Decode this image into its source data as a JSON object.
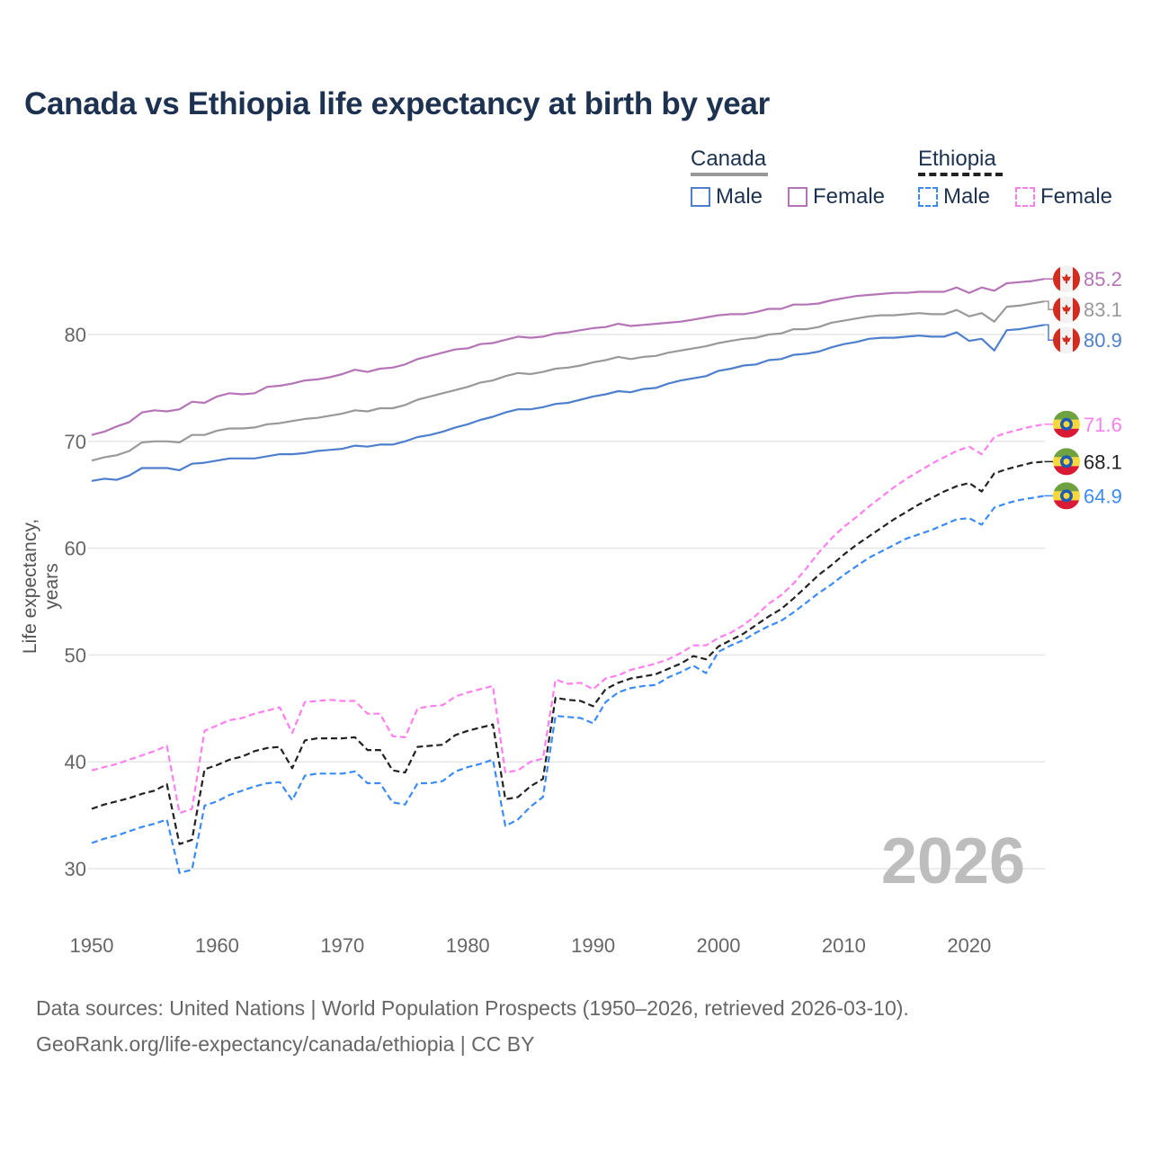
{
  "title": "Canada vs Ethiopia life expectancy at birth by year",
  "legend": {
    "groups": [
      {
        "name": "Canada",
        "items": [
          "Male",
          "Female"
        ]
      },
      {
        "name": "Ethiopia",
        "items": [
          "Male",
          "Female"
        ]
      }
    ]
  },
  "year_watermark": "2026",
  "sources": {
    "line1": "Data sources: United Nations | World Population Prospects (1950–2026, retrieved 2026-03-10).",
    "line2": "GeoRank.org/life-expectancy/canada/ethiopia | CC BY"
  },
  "chart_data": {
    "type": "line",
    "title": "Canada vs Ethiopia life expectancy at birth by year",
    "xlabel": "",
    "ylabel": "Life expectancy, years",
    "xlim": [
      1950,
      2026
    ],
    "ylim": [
      25,
      90
    ],
    "xticks": [
      1950,
      1960,
      1970,
      1980,
      1990,
      2000,
      2010,
      2020
    ],
    "yticks": [
      30,
      40,
      50,
      60,
      70,
      80
    ],
    "grid": true,
    "legend_position": "top-right",
    "x_start": 1950,
    "series": [
      {
        "name": "Canada Female",
        "country": "Canada",
        "flag": "canada-flag",
        "color": "#b574b6",
        "dashed": false,
        "end_label": "85.2",
        "values": [
          70.6,
          70.9,
          71.4,
          71.8,
          72.7,
          72.9,
          72.8,
          73.0,
          73.7,
          73.6,
          74.2,
          74.5,
          74.4,
          74.5,
          75.1,
          75.2,
          75.4,
          75.7,
          75.8,
          76.0,
          76.3,
          76.7,
          76.5,
          76.8,
          76.9,
          77.2,
          77.7,
          78.0,
          78.3,
          78.6,
          78.7,
          79.1,
          79.2,
          79.5,
          79.8,
          79.7,
          79.8,
          80.1,
          80.2,
          80.4,
          80.6,
          80.7,
          81.0,
          80.8,
          80.9,
          81.0,
          81.1,
          81.2,
          81.4,
          81.6,
          81.8,
          81.9,
          81.9,
          82.1,
          82.4,
          82.4,
          82.8,
          82.8,
          82.9,
          83.2,
          83.4,
          83.6,
          83.7,
          83.8,
          83.9,
          83.9,
          84.0,
          84.0,
          84.0,
          84.4,
          83.9,
          84.4,
          84.1,
          84.8,
          84.9,
          85.0,
          85.2
        ]
      },
      {
        "name": "Canada",
        "country": "Canada",
        "flag": "canada-flag",
        "color": "#999999",
        "dashed": false,
        "end_label": "83.1",
        "values": [
          68.2,
          68.5,
          68.7,
          69.1,
          69.9,
          70.0,
          70.0,
          69.9,
          70.6,
          70.6,
          71.0,
          71.2,
          71.2,
          71.3,
          71.6,
          71.7,
          71.9,
          72.1,
          72.2,
          72.4,
          72.6,
          72.9,
          72.8,
          73.1,
          73.1,
          73.4,
          73.9,
          74.2,
          74.5,
          74.8,
          75.1,
          75.5,
          75.7,
          76.1,
          76.4,
          76.3,
          76.5,
          76.8,
          76.9,
          77.1,
          77.4,
          77.6,
          77.9,
          77.7,
          77.9,
          78.0,
          78.3,
          78.5,
          78.7,
          78.9,
          79.2,
          79.4,
          79.6,
          79.7,
          80.0,
          80.1,
          80.5,
          80.5,
          80.7,
          81.1,
          81.3,
          81.5,
          81.7,
          81.8,
          81.8,
          81.9,
          82.0,
          81.9,
          81.9,
          82.3,
          81.7,
          82.0,
          81.2,
          82.6,
          82.7,
          82.9,
          83.1
        ]
      },
      {
        "name": "Canada Male",
        "country": "Canada",
        "flag": "canada-flag",
        "color": "#4e7fcd",
        "dashed": false,
        "end_label": "80.9",
        "values": [
          66.3,
          66.5,
          66.4,
          66.8,
          67.5,
          67.5,
          67.5,
          67.3,
          67.9,
          68.0,
          68.2,
          68.4,
          68.4,
          68.4,
          68.6,
          68.8,
          68.8,
          68.9,
          69.1,
          69.2,
          69.3,
          69.6,
          69.5,
          69.7,
          69.7,
          70.0,
          70.4,
          70.6,
          70.9,
          71.3,
          71.6,
          72.0,
          72.3,
          72.7,
          73.0,
          73.0,
          73.2,
          73.5,
          73.6,
          73.9,
          74.2,
          74.4,
          74.7,
          74.6,
          74.9,
          75.0,
          75.4,
          75.7,
          75.9,
          76.1,
          76.6,
          76.8,
          77.1,
          77.2,
          77.6,
          77.7,
          78.1,
          78.2,
          78.4,
          78.8,
          79.1,
          79.3,
          79.6,
          79.7,
          79.7,
          79.8,
          79.9,
          79.8,
          79.8,
          80.2,
          79.4,
          79.6,
          78.5,
          80.4,
          80.5,
          80.7,
          80.9
        ]
      },
      {
        "name": "Ethiopia Female",
        "country": "Ethiopia",
        "flag": "ethiopia-flag",
        "color": "#ff7ff0",
        "dashed": true,
        "end_label": "71.6",
        "values": [
          39.2,
          39.5,
          39.8,
          40.2,
          40.6,
          41.0,
          41.5,
          35.2,
          35.6,
          42.9,
          43.4,
          43.9,
          44.1,
          44.5,
          44.8,
          45.1,
          42.7,
          45.6,
          45.7,
          45.8,
          45.7,
          45.7,
          44.5,
          44.5,
          42.4,
          42.3,
          45.0,
          45.2,
          45.3,
          46.1,
          46.5,
          46.8,
          47.1,
          39.0,
          39.2,
          40.0,
          40.3,
          47.7,
          47.3,
          47.4,
          46.8,
          47.8,
          48.1,
          48.6,
          48.9,
          49.2,
          49.6,
          50.2,
          50.9,
          50.9,
          51.6,
          52.1,
          52.8,
          53.7,
          54.8,
          55.6,
          56.7,
          58.1,
          59.6,
          60.9,
          62.0,
          62.9,
          63.9,
          64.8,
          65.7,
          66.5,
          67.2,
          67.9,
          68.5,
          69.1,
          69.5,
          68.8,
          70.4,
          70.8,
          71.1,
          71.4,
          71.6
        ]
      },
      {
        "name": "Ethiopia",
        "country": "Ethiopia",
        "flag": "ethiopia-flag",
        "color": "#222222",
        "dashed": true,
        "end_label": "68.1",
        "values": [
          35.6,
          36.0,
          36.3,
          36.6,
          37.0,
          37.3,
          37.9,
          32.3,
          32.7,
          39.3,
          39.7,
          40.2,
          40.5,
          41.0,
          41.3,
          41.4,
          39.4,
          42.0,
          42.2,
          42.2,
          42.2,
          42.3,
          41.1,
          41.1,
          39.2,
          39.0,
          41.4,
          41.5,
          41.6,
          42.5,
          42.9,
          43.2,
          43.5,
          36.5,
          36.7,
          37.7,
          38.4,
          46.0,
          45.8,
          45.7,
          45.2,
          46.8,
          47.4,
          47.8,
          48.0,
          48.2,
          48.7,
          49.2,
          49.9,
          49.6,
          50.8,
          51.4,
          52.0,
          52.8,
          53.6,
          54.3,
          55.3,
          56.4,
          57.5,
          58.4,
          59.4,
          60.3,
          61.1,
          61.9,
          62.7,
          63.4,
          64.1,
          64.7,
          65.3,
          65.8,
          66.1,
          65.3,
          67.0,
          67.4,
          67.7,
          68.0,
          68.1
        ]
      },
      {
        "name": "Ethiopia Male",
        "country": "Ethiopia",
        "flag": "ethiopia-flag",
        "color": "#3b8bf7",
        "dashed": true,
        "end_label": "64.9",
        "values": [
          32.4,
          32.8,
          33.1,
          33.5,
          33.9,
          34.2,
          34.6,
          29.6,
          29.9,
          35.9,
          36.3,
          36.9,
          37.3,
          37.7,
          38.0,
          38.1,
          36.4,
          38.7,
          38.9,
          38.9,
          38.9,
          39.1,
          38.0,
          38.0,
          36.2,
          36.0,
          38.0,
          38.0,
          38.2,
          39.1,
          39.5,
          39.8,
          40.2,
          34.0,
          34.6,
          35.8,
          36.7,
          44.3,
          44.2,
          44.1,
          43.6,
          45.6,
          46.5,
          46.9,
          47.1,
          47.2,
          47.9,
          48.4,
          49.0,
          48.3,
          50.3,
          50.9,
          51.4,
          52.1,
          52.7,
          53.2,
          54.0,
          54.9,
          55.8,
          56.6,
          57.5,
          58.3,
          59.1,
          59.7,
          60.3,
          60.9,
          61.3,
          61.7,
          62.2,
          62.7,
          62.8,
          62.2,
          63.8,
          64.2,
          64.5,
          64.7,
          64.9
        ]
      }
    ]
  }
}
